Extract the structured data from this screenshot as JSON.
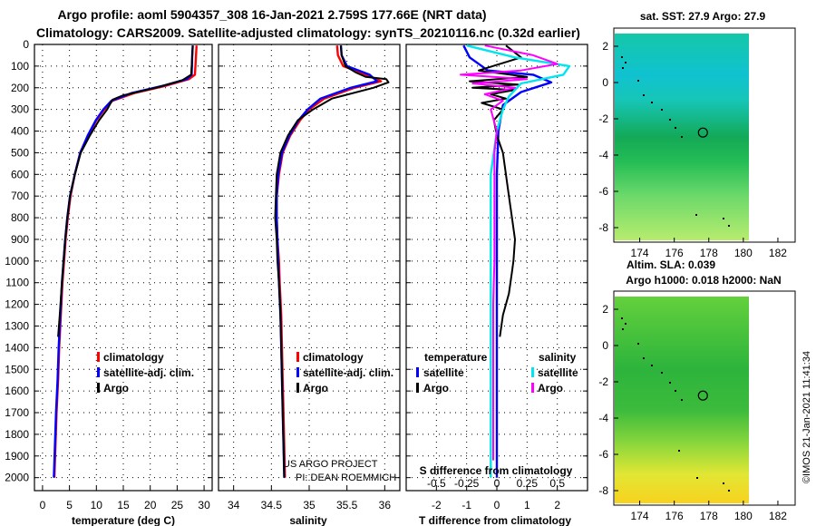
{
  "header": {
    "title_line1": "Argo profile: aoml 5904357_308 16-Jan-2021 2.759S 177.66E (NRT data)",
    "title_line2": "Climatology: CARS2009. Satellite-adjusted climatology: synTS_20210116.nc (0.32d earlier)"
  },
  "colors": {
    "climatology": "#ff0000",
    "satellite": "#0000ff",
    "argo": "#000000",
    "sal_satellite": "#00e5ee",
    "sal_argo": "#ff00ff"
  },
  "chart_data": [
    {
      "type": "line",
      "name": "temperature-profile",
      "xlabel": "temperature (deg C)",
      "xlim": [
        -1.5,
        31.5
      ],
      "xticks": [
        0,
        5,
        10,
        15,
        20,
        25,
        30
      ],
      "xticklabels": [
        "0",
        "5",
        "10",
        "15",
        "20",
        "25",
        "30"
      ],
      "ylim": [
        2060,
        0
      ],
      "yticks": [
        0,
        100,
        200,
        300,
        400,
        500,
        600,
        700,
        800,
        900,
        1000,
        1100,
        1200,
        1300,
        1400,
        1500,
        1600,
        1700,
        1800,
        1900,
        2000
      ],
      "yticklabels": [
        "0",
        "100",
        "200",
        "300",
        "400",
        "500",
        "600",
        "700",
        "800",
        "900",
        "1000",
        "1100",
        "1200",
        "1300",
        "1400",
        "1500",
        "1600",
        "1700",
        "1800",
        "1900",
        "2000"
      ],
      "grid": true,
      "legend": {
        "position": "bottom-center",
        "entries": [
          "climatology",
          "satellite-adj. clim.",
          "Argo"
        ]
      },
      "series": [
        {
          "name": "climatology",
          "x": [
            28.6,
            28.5,
            28.3,
            27.2,
            23.0,
            17.0,
            13.0,
            11.5,
            10.0,
            8.5,
            7.0,
            6.0,
            5.2,
            4.7,
            4.3,
            4.0,
            3.7,
            3.4,
            3.1,
            2.9,
            2.6,
            2.4,
            2.2
          ],
          "y": [
            5,
            50,
            140,
            160,
            190,
            225,
            260,
            300,
            350,
            420,
            500,
            600,
            700,
            800,
            900,
            1000,
            1100,
            1250,
            1400,
            1550,
            1700,
            1850,
            2000
          ]
        },
        {
          "name": "satellite-adj. clim.",
          "x": [
            27.9,
            27.8,
            27.7,
            26.8,
            22.5,
            16.5,
            12.8,
            11.3,
            9.9,
            8.4,
            7.0,
            6.0,
            5.1,
            4.6,
            4.2,
            3.9,
            3.6,
            3.3,
            3.0,
            2.8,
            2.5,
            2.3,
            2.1
          ],
          "y": [
            5,
            50,
            140,
            160,
            190,
            225,
            260,
            300,
            350,
            420,
            500,
            600,
            700,
            800,
            900,
            1000,
            1100,
            1250,
            1400,
            1550,
            1700,
            1850,
            2000
          ]
        },
        {
          "name": "Argo",
          "x": [
            27.9,
            27.8,
            27.6,
            26.0,
            21.0,
            15.0,
            13.0,
            12.0,
            10.5,
            8.8,
            7.1,
            6.0,
            5.1,
            4.6,
            4.2,
            3.9,
            3.6,
            3.2,
            2.9
          ],
          "y": [
            5,
            60,
            140,
            165,
            200,
            235,
            255,
            300,
            350,
            420,
            500,
            600,
            700,
            800,
            900,
            1000,
            1100,
            1250,
            1350
          ]
        }
      ]
    },
    {
      "type": "line",
      "name": "salinity-profile",
      "xlabel": "salinity",
      "xlim": [
        33.8,
        36.2
      ],
      "xticks": [
        34,
        34.5,
        35,
        35.5,
        36
      ],
      "xticklabels": [
        "34",
        "34.5",
        "35",
        "35.5",
        "36"
      ],
      "ylim": [
        2060,
        0
      ],
      "grid": true,
      "legend": {
        "position": "bottom-center",
        "entries": [
          "climatology",
          "satellite-adj. clim.",
          "Argo"
        ]
      },
      "annotation": [
        "US ARGO PROJECT",
        "PI: DEAN ROEMMICH"
      ],
      "series": [
        {
          "name": "climatology",
          "x": [
            35.37,
            35.38,
            35.45,
            35.75,
            35.95,
            35.6,
            35.2,
            35.0,
            34.88,
            34.75,
            34.65,
            34.6,
            34.57,
            34.57,
            34.58,
            34.6,
            34.61,
            34.63,
            34.64,
            34.65,
            34.66,
            34.67,
            34.68
          ],
          "y": [
            5,
            50,
            100,
            140,
            170,
            200,
            250,
            300,
            350,
            420,
            500,
            600,
            700,
            800,
            900,
            1000,
            1100,
            1250,
            1400,
            1550,
            1700,
            1850,
            2000
          ]
        },
        {
          "name": "satellite-adj. clim.",
          "x": [
            35.42,
            35.43,
            35.5,
            35.8,
            35.9,
            35.55,
            35.15,
            34.98,
            34.86,
            34.74,
            34.64,
            34.59,
            34.57,
            34.57,
            34.58,
            34.59,
            34.6,
            34.62,
            34.63,
            34.64,
            34.65,
            34.66,
            34.67
          ],
          "y": [
            5,
            50,
            100,
            140,
            170,
            200,
            250,
            300,
            350,
            420,
            500,
            600,
            700,
            800,
            900,
            1000,
            1100,
            1250,
            1400,
            1550,
            1700,
            1850,
            2000
          ]
        },
        {
          "name": "Argo",
          "x": [
            35.42,
            35.43,
            35.48,
            35.62,
            35.75,
            36.02,
            36.05,
            35.85,
            35.3,
            35.05,
            34.85,
            34.72,
            34.62,
            34.57,
            34.56,
            34.55,
            34.57,
            34.58,
            34.6,
            34.62,
            34.63,
            34.64,
            34.65,
            34.66,
            34.67
          ],
          "y": [
            5,
            50,
            100,
            130,
            150,
            160,
            175,
            200,
            250,
            300,
            350,
            420,
            500,
            600,
            700,
            800,
            900,
            1000,
            1100,
            1250,
            1400,
            1550,
            1700,
            1850,
            2000
          ]
        }
      ]
    },
    {
      "type": "line",
      "name": "difference-profile",
      "xlabel": "T difference from climatology",
      "xlabel_top": "S difference from climatology",
      "xlim": [
        -3.0,
        3.0
      ],
      "xticks": [
        -2,
        -1,
        0,
        1,
        2
      ],
      "xticklabels": [
        "-2",
        "-1",
        "0",
        "1",
        "2"
      ],
      "xticks_s": [
        -0.5,
        -0.25,
        0,
        0.25,
        0.5
      ],
      "xticklabels_s": [
        "-0.5",
        "-0.25",
        "0",
        "0.25",
        "0.5"
      ],
      "ylim": [
        2060,
        0
      ],
      "grid": true,
      "legend": {
        "position": "bottom-center",
        "title_left": "temperature",
        "title_right": "salinity",
        "left_entries": [
          "satellite",
          "Argo"
        ],
        "right_entries": [
          "satellite",
          "Argo"
        ]
      },
      "series": [
        {
          "name": "T satellite",
          "x": [
            -1.1,
            -0.9,
            -0.3,
            1.2,
            1.8,
            0.8,
            0.2,
            0.05,
            0.0,
            0.0,
            0.0,
            0.0
          ],
          "y": [
            5,
            60,
            120,
            140,
            175,
            220,
            280,
            400,
            600,
            900,
            1400,
            2000
          ]
        },
        {
          "name": "T Argo",
          "x": [
            0.3,
            0.8,
            -0.6,
            1.0,
            -0.9,
            0.7,
            -0.8,
            0.6,
            -0.2,
            0.3,
            -0.5,
            0.2,
            -0.1,
            0.0,
            0.2,
            0.3,
            0.4,
            0.5,
            0.6,
            0.55,
            0.5,
            0.45,
            0.4,
            0.3,
            0.2,
            0.15,
            0.1
          ],
          "y": [
            5,
            60,
            120,
            150,
            170,
            185,
            200,
            210,
            230,
            250,
            270,
            300,
            350,
            420,
            500,
            600,
            700,
            800,
            900,
            1000,
            1050,
            1100,
            1150,
            1200,
            1250,
            1300,
            1350
          ]
        },
        {
          "name": "S satellite",
          "x": [
            -0.25,
            0.15,
            0.6,
            0.55,
            0.2,
            0.1,
            0.05,
            0.0,
            -0.05,
            -0.05,
            -0.05,
            -0.05,
            -0.05
          ],
          "y": [
            5,
            60,
            100,
            140,
            180,
            240,
            300,
            400,
            600,
            900,
            1200,
            1600,
            2000
          ]
        },
        {
          "name": "S Argo",
          "x": [
            -0.1,
            0.3,
            0.5,
            0.2,
            -0.3,
            0.25,
            -0.2,
            0.15,
            -0.1,
            0.05,
            -0.05,
            0.0,
            -0.02,
            -0.02,
            -0.02,
            -0.02,
            -0.03,
            -0.03,
            -0.03,
            -0.03,
            -0.03,
            -0.03
          ],
          "y": [
            5,
            50,
            90,
            120,
            140,
            160,
            180,
            200,
            230,
            260,
            300,
            400,
            500,
            600,
            800,
            1000,
            1200,
            1400,
            1600,
            1750,
            1850,
            1920
          ]
        }
      ]
    },
    {
      "type": "heatmap",
      "name": "sst-map",
      "title": "sat. SST: 27.9 Argo: 27.9",
      "xlim": [
        172.5,
        183.0
      ],
      "ylim": [
        -8.8,
        3.0
      ],
      "xticks": [
        174,
        176,
        178,
        180,
        182
      ],
      "xticklabels": [
        "174",
        "176",
        "178",
        "180",
        "182"
      ],
      "yticks": [
        2,
        0,
        -2,
        -4,
        -6,
        -8
      ],
      "yticklabels": [
        "2",
        "0",
        "-2",
        "-4",
        "-6",
        "-8"
      ],
      "data_extent_lon": [
        172.5,
        180.0
      ],
      "data_extent_lat": [
        -8.6,
        3.0
      ],
      "marker": {
        "lon": 177.66,
        "lat": -2.759
      },
      "bottom_label": "Altim. SLA: 0.039"
    },
    {
      "type": "heatmap",
      "name": "sla-map",
      "title": "Argo h1000: 0.018 h2000: NaN",
      "xlim": [
        172.5,
        183.0
      ],
      "ylim": [
        -8.8,
        3.0
      ],
      "xticks": [
        174,
        176,
        178,
        180,
        182
      ],
      "xticklabels": [
        "174",
        "176",
        "178",
        "180",
        "182"
      ],
      "yticks": [
        2,
        0,
        -2,
        -4,
        -6,
        -8
      ],
      "yticklabels": [
        "2",
        "0",
        "-2",
        "-4",
        "-6",
        "-8"
      ],
      "data_extent_lon": [
        172.5,
        180.0
      ],
      "data_extent_lat": [
        -8.6,
        3.0
      ],
      "marker": {
        "lon": 177.66,
        "lat": -2.759
      }
    }
  ],
  "legend_labels": {
    "climatology": "climatology",
    "satellite_adj": "satellite-adj. clim.",
    "argo": "Argo",
    "temperature": "temperature",
    "salinity": "salinity",
    "satellite": "satellite"
  },
  "footer": {
    "credit": "©IMOS 21-Jan-2021 11:41:34"
  }
}
